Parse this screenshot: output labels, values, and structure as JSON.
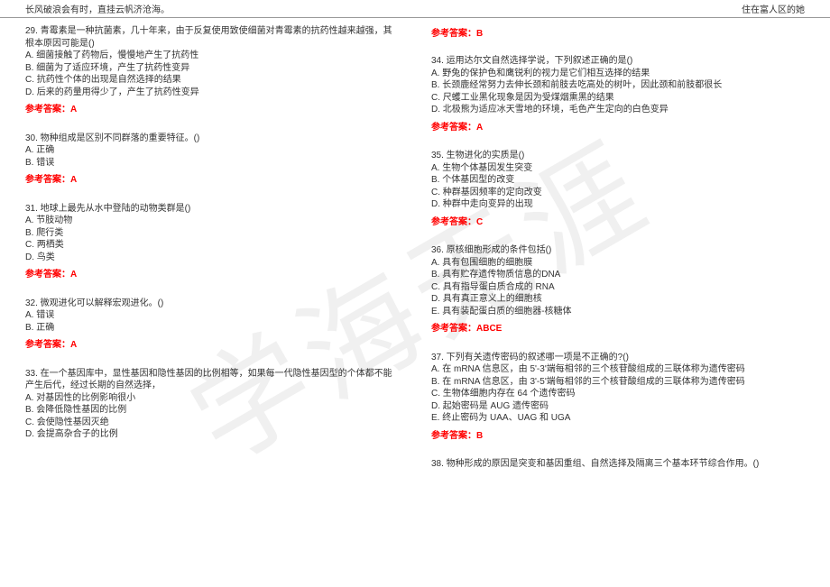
{
  "header": {
    "left": "长风破浪会有时，直挂云帆济沧海。",
    "right": "住在富人区的她"
  },
  "watermark": "学海无涯",
  "left_column": {
    "top_answer": "",
    "q29": {
      "text": "29. 青霉素是一种抗菌素，几十年来，由于反复使用致使细菌对青霉素的抗药性越来越强，其根本原因可能是()",
      "optA": "A. 细菌接触了药物后，慢慢地产生了抗药性",
      "optB": "B. 细菌为了适应环境，产生了抗药性变异",
      "optC": "C. 抗药性个体的出现是自然选择的结果",
      "optD": "D. 后来的药量用得少了，产生了抗药性变异",
      "answer": "参考答案：A"
    },
    "q30": {
      "text": "30. 物种组成是区别不同群落的重要特征。()",
      "optA": "A. 正确",
      "optB": "B. 错误",
      "answer": "参考答案：A"
    },
    "q31": {
      "text": "31. 地球上最先从水中登陆的动物类群是()",
      "optA": "A. 节肢动物",
      "optB": "B. 爬行类",
      "optC": "C. 两栖类",
      "optD": "D. 鸟类",
      "answer": "参考答案：A"
    },
    "q32": {
      "text": "32. 微观进化可以解释宏观进化。()",
      "optA": "A. 错误",
      "optB": "B. 正确",
      "answer": "参考答案：A"
    },
    "q33": {
      "text": "33. 在一个基因库中，显性基因和隐性基因的比例相等，如果每一代隐性基因型的个体都不能产生后代，经过长期的自然选择，",
      "optA": "A. 对基因性的比例影响很小",
      "optB": "B. 会降低隐性基因的比例",
      "optC": "C. 会使隐性基因灭绝",
      "optD": "D. 会提高杂合子的比例"
    }
  },
  "right_column": {
    "top_answer": "参考答案：B",
    "q34": {
      "text": "34. 运用达尔文自然选择学说，下列叙述正确的是()",
      "optA": "A. 野兔的保护色和鹰锐利的视力是它们相互选择的结果",
      "optB": "B. 长颈鹿经常努力去伸长颈和前肢去吃高处的树叶，因此颈和前肢都很长",
      "optC": "C. 尺蠖工业黑化现象是因为受煤烟熏黑的结果",
      "optD": "D. 北极熊为适应冰天雪地的环境，毛色产生定向的白色变异",
      "answer": "参考答案：A"
    },
    "q35": {
      "text": "35. 生物进化的实质是()",
      "optA": "A. 生物个体基因发生突变",
      "optB": "B. 个体基因型的改变",
      "optC": "C. 种群基因频率的定向改变",
      "optD": "D. 种群中走向变异的出现",
      "answer": "参考答案：C"
    },
    "q36": {
      "text": "36. 原核细胞形成的条件包括()",
      "optA": "A. 具有包围细胞的细胞膜",
      "optB": "B. 具有贮存遗传物质信息的DNA",
      "optC": "C. 具有指导蛋白质合成的 RNA",
      "optD": "D. 具有真正意义上的细胞核",
      "optE": "E. 具有装配蛋白质的细胞器-核糖体",
      "answer": "参考答案：ABCE"
    },
    "q37": {
      "text": "37. 下列有关遗传密码的叙述哪一项是不正确的?()",
      "optA": "A. 在 mRNA 信息区，由 5'-3'端每相邻的三个核苷酸组成的三联体称为遗传密码",
      "optB": "B. 在 mRNA 信息区，由 3'-5'端每相邻的三个核苷酸组成的三联体称为遗传密码",
      "optC": "C. 生物体细胞内存在 64 个遗传密码",
      "optD": "D. 起始密码是 AUG 遗传密码",
      "optE": "E. 终止密码为 UAA、UAG 和 UGA",
      "answer": "参考答案：B"
    },
    "q38": {
      "text": "38. 物种形成的原因是突变和基因重组、自然选择及隔离三个基本环节综合作用。()"
    }
  }
}
